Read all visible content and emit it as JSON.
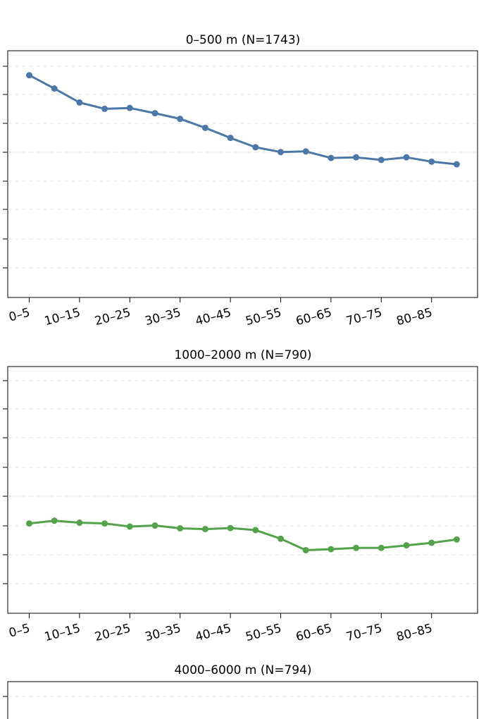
{
  "chart_data": [
    {
      "type": "line",
      "title": "0–500 m (N=1743)",
      "color": "#4c78a8",
      "categories": [
        "0–5",
        "5–10",
        "10–15",
        "15–20",
        "20–25",
        "25–30",
        "30–35",
        "35–40",
        "40–45",
        "45–50",
        "50–55",
        "55–60",
        "60–65",
        "65–70",
        "70–75",
        "75–80",
        "80–85",
        "85–90"
      ],
      "tick_labels": [
        "0–5",
        "10–15",
        "20–25",
        "30–35",
        "40–45",
        "50–55",
        "60–65",
        "70–75",
        "80–85"
      ],
      "values": [
        7.68,
        7.07,
        6.43,
        6.14,
        6.18,
        5.94,
        5.68,
        5.27,
        4.81,
        4.38,
        4.16,
        4.19,
        3.89,
        3.92,
        3.8,
        3.92,
        3.72,
        3.6
      ],
      "ylim": [
        -2.5,
        8.8
      ],
      "grid": true,
      "legend": "none"
    },
    {
      "type": "line",
      "title": "1000–2000 m (N=790)",
      "color": "#54a24b",
      "categories": [
        "0–5",
        "5–10",
        "10–15",
        "15–20",
        "20–25",
        "25–30",
        "30–35",
        "35–40",
        "40–45",
        "45–50",
        "50–55",
        "55–60",
        "60–65",
        "65–70",
        "70–75",
        "75–80",
        "80–85",
        "85–90"
      ],
      "tick_labels": [
        "0–5",
        "10–15",
        "20–25",
        "30–35",
        "40–45",
        "50–55",
        "60–65",
        "70–75",
        "80–85"
      ],
      "values": [
        2.63,
        2.74,
        2.66,
        2.63,
        2.51,
        2.55,
        2.44,
        2.41,
        2.45,
        2.37,
        2.03,
        1.58,
        1.62,
        1.67,
        1.67,
        1.77,
        1.87,
        2.0
      ],
      "ylim": [
        -0.9,
        8.8
      ],
      "grid": true,
      "legend": "none"
    },
    {
      "type": "line",
      "title": "4000–6000 m (N=794)",
      "color": "#e45756",
      "categories": [],
      "values": [],
      "grid": true,
      "legend": "none"
    }
  ]
}
